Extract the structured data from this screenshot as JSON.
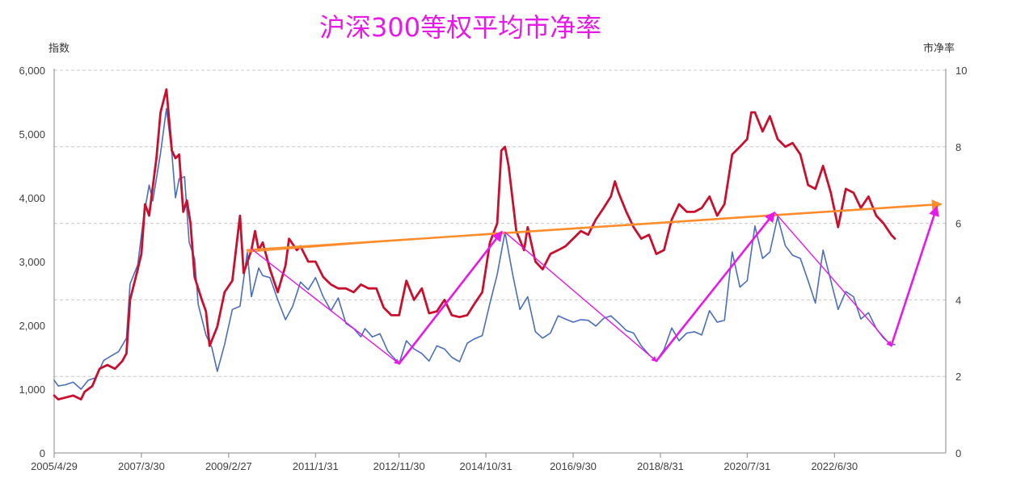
{
  "chart_data": {
    "type": "line",
    "title": "沪深300等权平均市净率",
    "y_left_label": "指数",
    "y_right_label": "市净率",
    "ylim_left": [
      0,
      6000
    ],
    "ylim_right": [
      0,
      10
    ],
    "y_left_ticks": [
      "0",
      "1,000",
      "2,000",
      "3,000",
      "4,000",
      "5,000",
      "6,000"
    ],
    "y_right_ticks": [
      "0",
      "2",
      "4",
      "6",
      "8",
      "10"
    ],
    "x_tick_labels": [
      "2005/4/29",
      "2007/3/30",
      "2009/2/27",
      "2011/1/31",
      "2012/11/30",
      "2014/10/31",
      "2016/9/30",
      "2018/8/31",
      "2020/7/31",
      "2022/6/30"
    ],
    "x_tick_dates": [
      2005.33,
      2007.25,
      2009.17,
      2011.08,
      2012.92,
      2014.83,
      2016.75,
      2018.67,
      2020.58,
      2022.5
    ],
    "grid": true,
    "legend": "none",
    "series": [
      {
        "axis": "left",
        "color": "#4a6ebf",
        "points": [
          [
            2005.33,
            1140
          ],
          [
            2005.42,
            1050
          ],
          [
            2005.58,
            1070
          ],
          [
            2005.75,
            1110
          ],
          [
            2005.92,
            1000
          ],
          [
            2006.08,
            1140
          ],
          [
            2006.25,
            1180
          ],
          [
            2006.42,
            1450
          ],
          [
            2006.58,
            1520
          ],
          [
            2006.75,
            1590
          ],
          [
            2006.92,
            1800
          ],
          [
            2007.0,
            2650
          ],
          [
            2007.17,
            2950
          ],
          [
            2007.3,
            3700
          ],
          [
            2007.42,
            4200
          ],
          [
            2007.5,
            3950
          ],
          [
            2007.67,
            4700
          ],
          [
            2007.8,
            5400
          ],
          [
            2007.92,
            4700
          ],
          [
            2008.0,
            4000
          ],
          [
            2008.08,
            4300
          ],
          [
            2008.2,
            4330
          ],
          [
            2008.3,
            3300
          ],
          [
            2008.42,
            3050
          ],
          [
            2008.5,
            2330
          ],
          [
            2008.67,
            1850
          ],
          [
            2008.8,
            1650
          ],
          [
            2008.92,
            1280
          ],
          [
            2009.08,
            1700
          ],
          [
            2009.25,
            2250
          ],
          [
            2009.42,
            2300
          ],
          [
            2009.58,
            3150
          ],
          [
            2009.67,
            2450
          ],
          [
            2009.83,
            2900
          ],
          [
            2009.92,
            2780
          ],
          [
            2010.08,
            2750
          ],
          [
            2010.25,
            2400
          ],
          [
            2010.42,
            2090
          ],
          [
            2010.58,
            2300
          ],
          [
            2010.75,
            2680
          ],
          [
            2010.92,
            2560
          ],
          [
            2011.08,
            2750
          ],
          [
            2011.25,
            2450
          ],
          [
            2011.42,
            2230
          ],
          [
            2011.58,
            2430
          ],
          [
            2011.75,
            2030
          ],
          [
            2011.92,
            1950
          ],
          [
            2012.08,
            1820
          ],
          [
            2012.17,
            1950
          ],
          [
            2012.33,
            1820
          ],
          [
            2012.5,
            1870
          ],
          [
            2012.67,
            1600
          ],
          [
            2012.92,
            1400
          ],
          [
            2013.08,
            1760
          ],
          [
            2013.25,
            1630
          ],
          [
            2013.42,
            1560
          ],
          [
            2013.58,
            1440
          ],
          [
            2013.75,
            1680
          ],
          [
            2013.92,
            1630
          ],
          [
            2014.08,
            1500
          ],
          [
            2014.25,
            1430
          ],
          [
            2014.42,
            1720
          ],
          [
            2014.58,
            1790
          ],
          [
            2014.75,
            1840
          ],
          [
            2014.92,
            2350
          ],
          [
            2015.08,
            2800
          ],
          [
            2015.25,
            3460
          ],
          [
            2015.42,
            2800
          ],
          [
            2015.58,
            2250
          ],
          [
            2015.75,
            2450
          ],
          [
            2015.92,
            1900
          ],
          [
            2016.08,
            1800
          ],
          [
            2016.25,
            1880
          ],
          [
            2016.42,
            2150
          ],
          [
            2016.58,
            2100
          ],
          [
            2016.75,
            2050
          ],
          [
            2016.92,
            2090
          ],
          [
            2017.08,
            2080
          ],
          [
            2017.25,
            1990
          ],
          [
            2017.42,
            2110
          ],
          [
            2017.58,
            2150
          ],
          [
            2017.75,
            2040
          ],
          [
            2017.92,
            1920
          ],
          [
            2018.08,
            1880
          ],
          [
            2018.25,
            1680
          ],
          [
            2018.42,
            1540
          ],
          [
            2018.58,
            1440
          ],
          [
            2018.75,
            1620
          ],
          [
            2018.92,
            1960
          ],
          [
            2019.08,
            1760
          ],
          [
            2019.25,
            1880
          ],
          [
            2019.42,
            1900
          ],
          [
            2019.58,
            1850
          ],
          [
            2019.75,
            2230
          ],
          [
            2019.92,
            2050
          ],
          [
            2020.08,
            2080
          ],
          [
            2020.25,
            3150
          ],
          [
            2020.42,
            2600
          ],
          [
            2020.58,
            2700
          ],
          [
            2020.75,
            3560
          ],
          [
            2020.92,
            3050
          ],
          [
            2021.08,
            3150
          ],
          [
            2021.25,
            3700
          ],
          [
            2021.42,
            3250
          ],
          [
            2021.58,
            3100
          ],
          [
            2021.75,
            3050
          ],
          [
            2021.92,
            2700
          ],
          [
            2022.08,
            2350
          ],
          [
            2022.25,
            3180
          ],
          [
            2022.42,
            2700
          ],
          [
            2022.58,
            2250
          ],
          [
            2022.75,
            2530
          ],
          [
            2022.92,
            2450
          ],
          [
            2023.08,
            2100
          ],
          [
            2023.25,
            2200
          ],
          [
            2023.42,
            1950
          ],
          [
            2023.58,
            1800
          ],
          [
            2023.75,
            1700
          ],
          [
            2023.83,
            1700
          ]
        ]
      },
      {
        "axis": "right",
        "color": "#c8102e",
        "points": [
          [
            2005.33,
            1.5
          ],
          [
            2005.42,
            1.4
          ],
          [
            2005.58,
            1.45
          ],
          [
            2005.75,
            1.5
          ],
          [
            2005.92,
            1.4
          ],
          [
            2006.0,
            1.6
          ],
          [
            2006.17,
            1.75
          ],
          [
            2006.33,
            2.2
          ],
          [
            2006.5,
            2.3
          ],
          [
            2006.67,
            2.2
          ],
          [
            2006.83,
            2.4
          ],
          [
            2006.92,
            2.6
          ],
          [
            2007.0,
            4.0
          ],
          [
            2007.17,
            4.8
          ],
          [
            2007.25,
            5.2
          ],
          [
            2007.33,
            6.5
          ],
          [
            2007.42,
            6.2
          ],
          [
            2007.58,
            7.7
          ],
          [
            2007.67,
            8.9
          ],
          [
            2007.8,
            9.5
          ],
          [
            2007.92,
            7.9
          ],
          [
            2008.0,
            7.7
          ],
          [
            2008.08,
            7.8
          ],
          [
            2008.17,
            6.3
          ],
          [
            2008.25,
            6.6
          ],
          [
            2008.33,
            6.0
          ],
          [
            2008.42,
            4.6
          ],
          [
            2008.58,
            4.0
          ],
          [
            2008.67,
            3.7
          ],
          [
            2008.75,
            2.8
          ],
          [
            2008.92,
            3.3
          ],
          [
            2009.08,
            4.2
          ],
          [
            2009.25,
            4.5
          ],
          [
            2009.42,
            6.2
          ],
          [
            2009.5,
            4.7
          ],
          [
            2009.67,
            5.3
          ],
          [
            2009.75,
            5.8
          ],
          [
            2009.83,
            5.3
          ],
          [
            2009.92,
            5.5
          ],
          [
            2010.08,
            4.8
          ],
          [
            2010.25,
            4.2
          ],
          [
            2010.42,
            4.9
          ],
          [
            2010.5,
            5.6
          ],
          [
            2010.67,
            5.3
          ],
          [
            2010.75,
            5.4
          ],
          [
            2010.92,
            5.0
          ],
          [
            2011.08,
            5.0
          ],
          [
            2011.25,
            4.6
          ],
          [
            2011.42,
            4.4
          ],
          [
            2011.58,
            4.3
          ],
          [
            2011.75,
            4.3
          ],
          [
            2011.92,
            4.2
          ],
          [
            2012.08,
            4.4
          ],
          [
            2012.25,
            4.3
          ],
          [
            2012.42,
            4.3
          ],
          [
            2012.58,
            3.8
          ],
          [
            2012.75,
            3.6
          ],
          [
            2012.92,
            3.6
          ],
          [
            2013.08,
            4.5
          ],
          [
            2013.25,
            4.0
          ],
          [
            2013.42,
            4.3
          ],
          [
            2013.58,
            3.65
          ],
          [
            2013.75,
            3.7
          ],
          [
            2013.92,
            4.0
          ],
          [
            2014.08,
            3.6
          ],
          [
            2014.25,
            3.55
          ],
          [
            2014.42,
            3.6
          ],
          [
            2014.58,
            3.9
          ],
          [
            2014.75,
            4.2
          ],
          [
            2014.92,
            5.5
          ],
          [
            2015.08,
            6.0
          ],
          [
            2015.17,
            7.9
          ],
          [
            2015.25,
            8.0
          ],
          [
            2015.33,
            7.5
          ],
          [
            2015.5,
            5.8
          ],
          [
            2015.67,
            5.3
          ],
          [
            2015.75,
            5.9
          ],
          [
            2015.92,
            5.0
          ],
          [
            2016.08,
            4.8
          ],
          [
            2016.25,
            5.2
          ],
          [
            2016.42,
            5.3
          ],
          [
            2016.58,
            5.4
          ],
          [
            2016.75,
            5.6
          ],
          [
            2016.92,
            5.8
          ],
          [
            2017.08,
            5.7
          ],
          [
            2017.25,
            6.1
          ],
          [
            2017.42,
            6.4
          ],
          [
            2017.58,
            6.7
          ],
          [
            2017.67,
            7.1
          ],
          [
            2017.75,
            6.8
          ],
          [
            2017.92,
            6.3
          ],
          [
            2018.08,
            5.9
          ],
          [
            2018.25,
            5.6
          ],
          [
            2018.42,
            5.7
          ],
          [
            2018.58,
            5.2
          ],
          [
            2018.75,
            5.3
          ],
          [
            2018.92,
            6.1
          ],
          [
            2019.08,
            6.5
          ],
          [
            2019.25,
            6.3
          ],
          [
            2019.42,
            6.3
          ],
          [
            2019.58,
            6.4
          ],
          [
            2019.75,
            6.7
          ],
          [
            2019.92,
            6.2
          ],
          [
            2020.08,
            6.5
          ],
          [
            2020.25,
            7.8
          ],
          [
            2020.42,
            8.0
          ],
          [
            2020.58,
            8.2
          ],
          [
            2020.67,
            8.9
          ],
          [
            2020.75,
            8.9
          ],
          [
            2020.92,
            8.4
          ],
          [
            2021.08,
            8.8
          ],
          [
            2021.25,
            8.2
          ],
          [
            2021.42,
            8.0
          ],
          [
            2021.58,
            8.1
          ],
          [
            2021.75,
            7.8
          ],
          [
            2021.92,
            7.0
          ],
          [
            2022.08,
            6.9
          ],
          [
            2022.25,
            7.5
          ],
          [
            2022.42,
            6.8
          ],
          [
            2022.58,
            5.9
          ],
          [
            2022.75,
            6.9
          ],
          [
            2022.92,
            6.8
          ],
          [
            2023.08,
            6.4
          ],
          [
            2023.25,
            6.7
          ],
          [
            2023.42,
            6.2
          ],
          [
            2023.58,
            6.0
          ],
          [
            2023.75,
            5.7
          ],
          [
            2023.83,
            5.6
          ]
        ]
      }
    ],
    "trend_lines": [
      {
        "axis": "right",
        "color": "#ff8c2a",
        "from": [
          2009.58,
          5.3
        ],
        "to": [
          2024.83,
          6.5
        ],
        "arrow": true,
        "width": 2.6
      },
      {
        "axis": "left",
        "color": "#ff8c2a",
        "from": [
          2009.58,
          3150
        ],
        "to": [
          2015.25,
          3460
        ],
        "arrow": false,
        "width": 1.2
      },
      {
        "axis": "left",
        "color": "#e619e6",
        "from": [
          2009.67,
          3200
        ],
        "to": [
          2012.92,
          1400
        ],
        "arrow": true,
        "width": 1.4
      },
      {
        "axis": "left",
        "color": "#e619e6",
        "from": [
          2012.92,
          1400
        ],
        "to": [
          2015.17,
          3460
        ],
        "arrow": true,
        "width": 2.6
      },
      {
        "axis": "left",
        "color": "#e619e6",
        "from": [
          2015.25,
          3460
        ],
        "to": [
          2018.58,
          1440
        ],
        "arrow": true,
        "width": 1.4
      },
      {
        "axis": "left",
        "color": "#e619e6",
        "from": [
          2018.58,
          1440
        ],
        "to": [
          2021.17,
          3760
        ],
        "arrow": true,
        "width": 2.6
      },
      {
        "axis": "left",
        "color": "#e619e6",
        "from": [
          2021.2,
          3760
        ],
        "to": [
          2023.75,
          1680
        ],
        "arrow": true,
        "width": 1.4
      },
      {
        "axis": "left",
        "color": "#e619e6",
        "from": [
          2023.75,
          1680
        ],
        "to": [
          2024.75,
          3850
        ],
        "arrow": true,
        "width": 2.6
      }
    ]
  }
}
